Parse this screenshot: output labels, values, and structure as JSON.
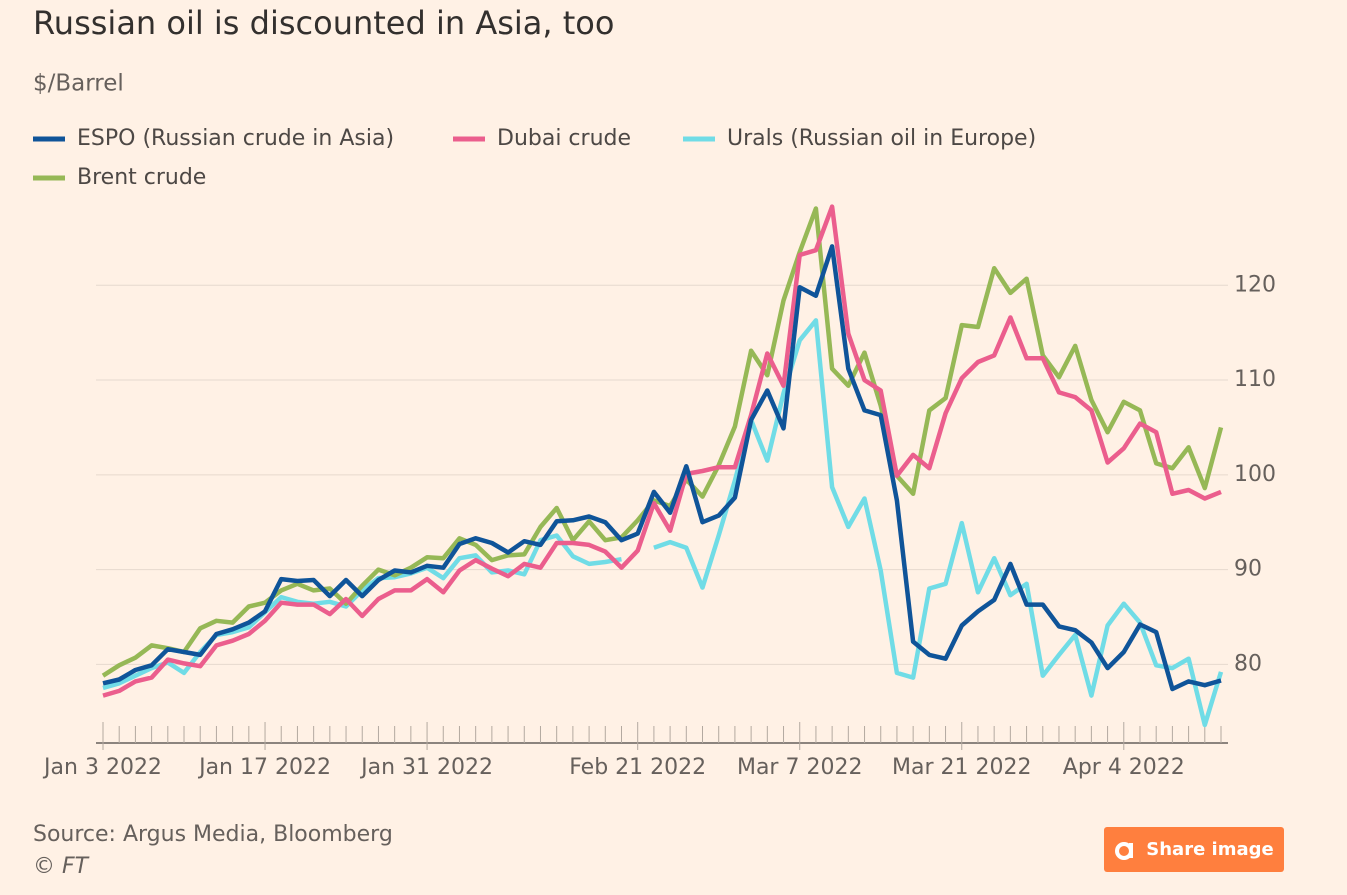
{
  "chart_data": {
    "type": "line",
    "title": "Russian oil is discounted in Asia, too",
    "subtitle": "$/Barrel",
    "source": "Source: Argus Media, Bloomberg",
    "credit": "© FT",
    "categories": [
      "Jan 3 2022",
      null,
      null,
      null,
      null,
      null,
      null,
      null,
      null,
      null,
      "Jan 17 2022",
      null,
      null,
      null,
      null,
      null,
      null,
      null,
      null,
      null,
      "Jan 31 2022",
      null,
      null,
      null,
      null,
      null,
      null,
      null,
      null,
      null,
      null,
      null,
      null,
      "Feb 21 2022",
      null,
      null,
      null,
      null,
      null,
      null,
      null,
      null,
      null,
      "Mar 7 2022",
      null,
      null,
      null,
      null,
      null,
      null,
      null,
      null,
      null,
      "Mar 21 2022",
      null,
      null,
      null,
      null,
      null,
      null,
      null,
      null,
      null,
      "Apr 4 2022",
      null,
      null,
      null,
      null,
      null,
      null
    ],
    "series": [
      {
        "name": "ESPO (Russian crude in Asia)",
        "color": "#0f5499",
        "values": [
          78.0,
          78.4,
          79.4,
          79.9,
          81.6,
          81.3,
          81.0,
          83.2,
          83.7,
          84.4,
          85.6,
          89.0,
          88.8,
          88.9,
          87.2,
          88.9,
          87.2,
          88.9,
          89.9,
          89.7,
          90.4,
          90.2,
          92.7,
          93.3,
          92.8,
          91.8,
          93.0,
          92.6,
          95.1,
          95.2,
          95.6,
          95.0,
          93.1,
          93.8,
          98.2,
          96.0,
          100.9,
          95.0,
          95.7,
          97.6,
          105.8,
          108.9,
          104.9,
          119.8,
          118.9,
          124.1,
          111.2,
          106.8,
          106.3,
          97.3,
          82.4,
          81.0,
          80.6,
          84.1,
          85.6,
          86.8,
          90.6,
          86.3,
          86.3,
          84.0,
          83.6,
          82.3,
          79.6,
          81.3,
          84.2,
          83.4,
          77.4,
          78.2,
          77.8,
          78.3
        ]
      },
      {
        "name": "Dubai crude",
        "color": "#eb5e8d",
        "values": [
          76.7,
          77.2,
          78.2,
          78.6,
          80.5,
          80.1,
          79.8,
          82.0,
          82.5,
          83.2,
          84.6,
          86.5,
          86.3,
          86.3,
          85.3,
          86.9,
          85.1,
          86.9,
          87.8,
          87.8,
          89.0,
          87.6,
          89.9,
          91.0,
          90.1,
          89.3,
          90.6,
          90.2,
          92.8,
          92.8,
          92.6,
          91.9,
          90.2,
          92.0,
          97.0,
          94.1,
          100.1,
          100.4,
          100.8,
          100.8,
          106.3,
          112.8,
          109.4,
          123.2,
          123.7,
          128.3,
          114.9,
          110.0,
          108.9,
          99.9,
          102.1,
          100.7,
          106.5,
          110.2,
          111.9,
          112.6,
          116.6,
          112.3,
          112.3,
          108.7,
          108.2,
          106.8,
          101.3,
          102.8,
          105.4,
          104.5,
          98.0,
          98.4,
          97.5,
          98.2
        ]
      },
      {
        "name": "Urals (Russian oil in Europe)",
        "color": "#70dce6",
        "values": [
          77.5,
          78.0,
          78.8,
          79.6,
          80.2,
          79.1,
          81.3,
          83.1,
          83.4,
          83.9,
          85.5,
          87.1,
          86.6,
          86.4,
          86.6,
          86.1,
          87.8,
          89.1,
          89.2,
          89.6,
          90.2,
          89.1,
          91.2,
          91.5,
          89.7,
          89.9,
          89.5,
          93.1,
          93.6,
          91.4,
          90.6,
          90.8,
          91.1,
          null,
          92.3,
          92.9,
          92.3,
          88.1,
          93.6,
          99.4,
          105.8,
          101.5,
          108.6,
          114.2,
          116.3,
          98.7,
          94.5,
          97.5,
          89.9,
          79.1,
          78.6,
          88.0,
          88.5,
          94.9,
          87.6,
          91.2,
          87.3,
          88.5,
          78.8,
          81.0,
          83.1,
          76.7,
          84.1,
          86.4,
          84.4,
          79.9,
          79.6,
          80.6,
          73.6,
          79.2
        ]
      },
      {
        "name": "Brent crude",
        "color": "#96b856",
        "values": [
          78.8,
          79.9,
          80.7,
          82.0,
          81.7,
          81.3,
          83.8,
          84.6,
          84.4,
          86.1,
          86.5,
          87.8,
          88.5,
          87.8,
          88.0,
          86.4,
          88.3,
          90.0,
          89.4,
          90.2,
          91.3,
          91.2,
          93.3,
          92.6,
          91.0,
          91.5,
          91.6,
          94.5,
          96.5,
          93.1,
          95.1,
          93.1,
          93.4,
          95.2,
          97.3,
          96.7,
          99.5,
          97.7,
          101.0,
          105.1,
          113.1,
          110.5,
          118.4,
          123.5,
          128.1,
          111.2,
          109.4,
          112.9,
          107.3,
          99.9,
          98.0,
          106.8,
          108.1,
          115.8,
          115.6,
          121.8,
          119.2,
          120.7,
          112.6,
          110.3,
          113.6,
          107.9,
          104.5,
          107.7,
          106.8,
          101.2,
          100.7,
          102.9,
          98.6,
          105.0
        ]
      }
    ],
    "ylim": [
      71.7,
      129
    ],
    "yticks": [
      80,
      90,
      100,
      110,
      120
    ],
    "grid": true
  },
  "share_button": "Share image"
}
